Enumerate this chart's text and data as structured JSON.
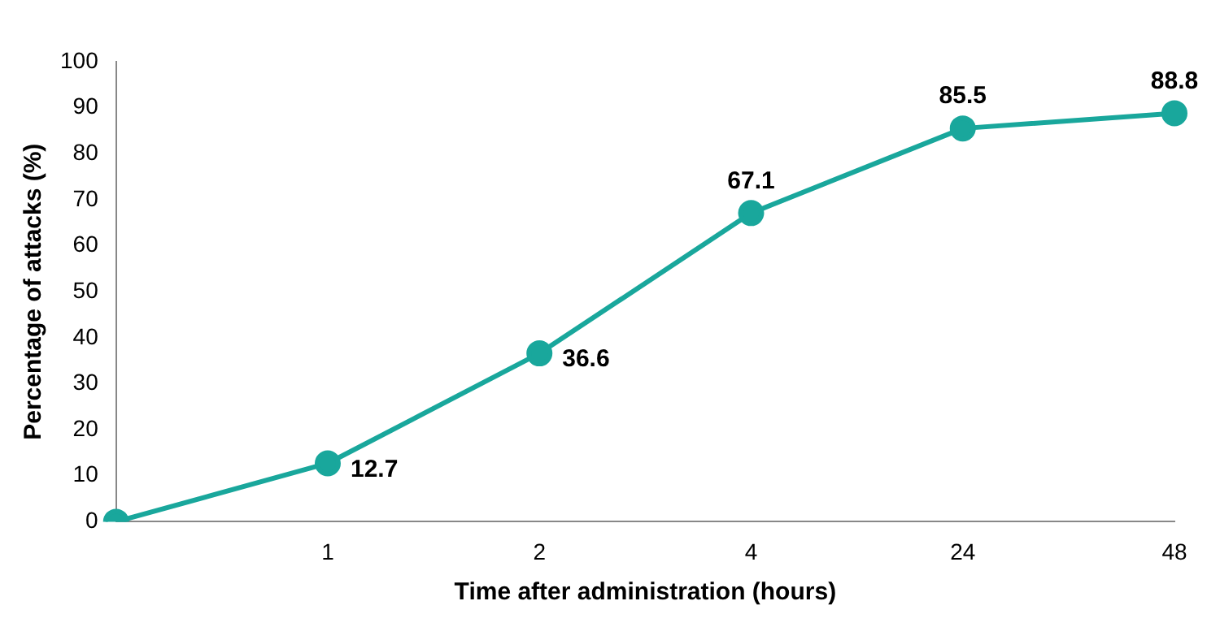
{
  "chart_data": {
    "type": "line",
    "xlabel": "Time after administration (hours)",
    "ylabel": "Percentage of attacks (%)",
    "categories": [
      null,
      "1",
      "2",
      "4",
      "24",
      "48"
    ],
    "series": [
      {
        "color": "#19a79c",
        "values": [
          0,
          12.7,
          36.6,
          67.1,
          85.5,
          88.8
        ],
        "value_labels": [
          null,
          "12.7",
          "36.6",
          "67.1",
          "85.5",
          "88.8"
        ]
      }
    ],
    "ylim": [
      0,
      100
    ],
    "yticks": [
      0,
      10,
      20,
      30,
      40,
      50,
      60,
      70,
      80,
      90,
      100
    ],
    "grid": false,
    "legend": false,
    "marker": "circle",
    "line_style": "solid"
  }
}
